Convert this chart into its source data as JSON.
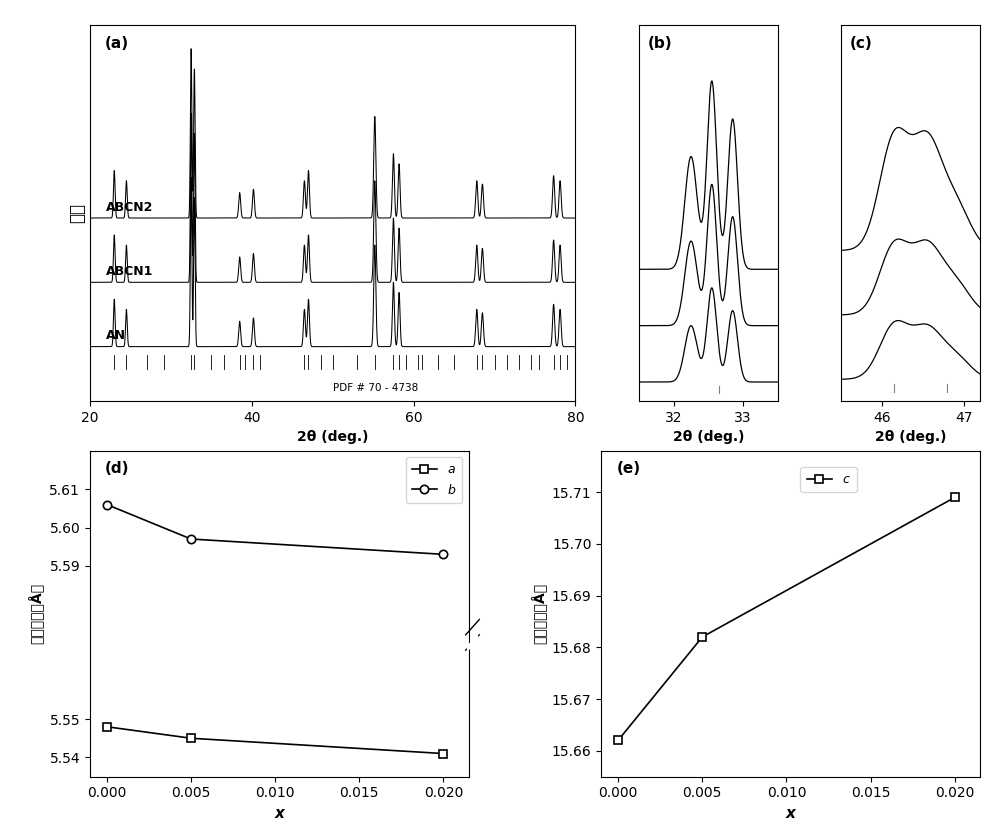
{
  "panel_a_label": "(a)",
  "panel_b_label": "(b)",
  "panel_c_label": "(c)",
  "panel_d_label": "(d)",
  "panel_e_label": "(e)",
  "xlabel_a": "2θ (deg.)",
  "xlabel_b": "2θ (deg.)",
  "xlabel_c": "2θ (deg.)",
  "ylabel_a": "强度",
  "ylabel_d": "晶格参数（Å）",
  "ylabel_e": "晶格参数（Å）",
  "xlabel_de": "x",
  "pdf_text": "PDF # 70 - 4738",
  "labels_a": [
    "ABCN2",
    "ABCN1",
    "AN"
  ],
  "a_values": [
    5.548,
    5.545,
    5.541
  ],
  "b_values": [
    5.606,
    5.597,
    5.593
  ],
  "c_values": [
    15.662,
    15.682,
    15.709
  ],
  "x_values": [
    0.0,
    0.005,
    0.02
  ]
}
